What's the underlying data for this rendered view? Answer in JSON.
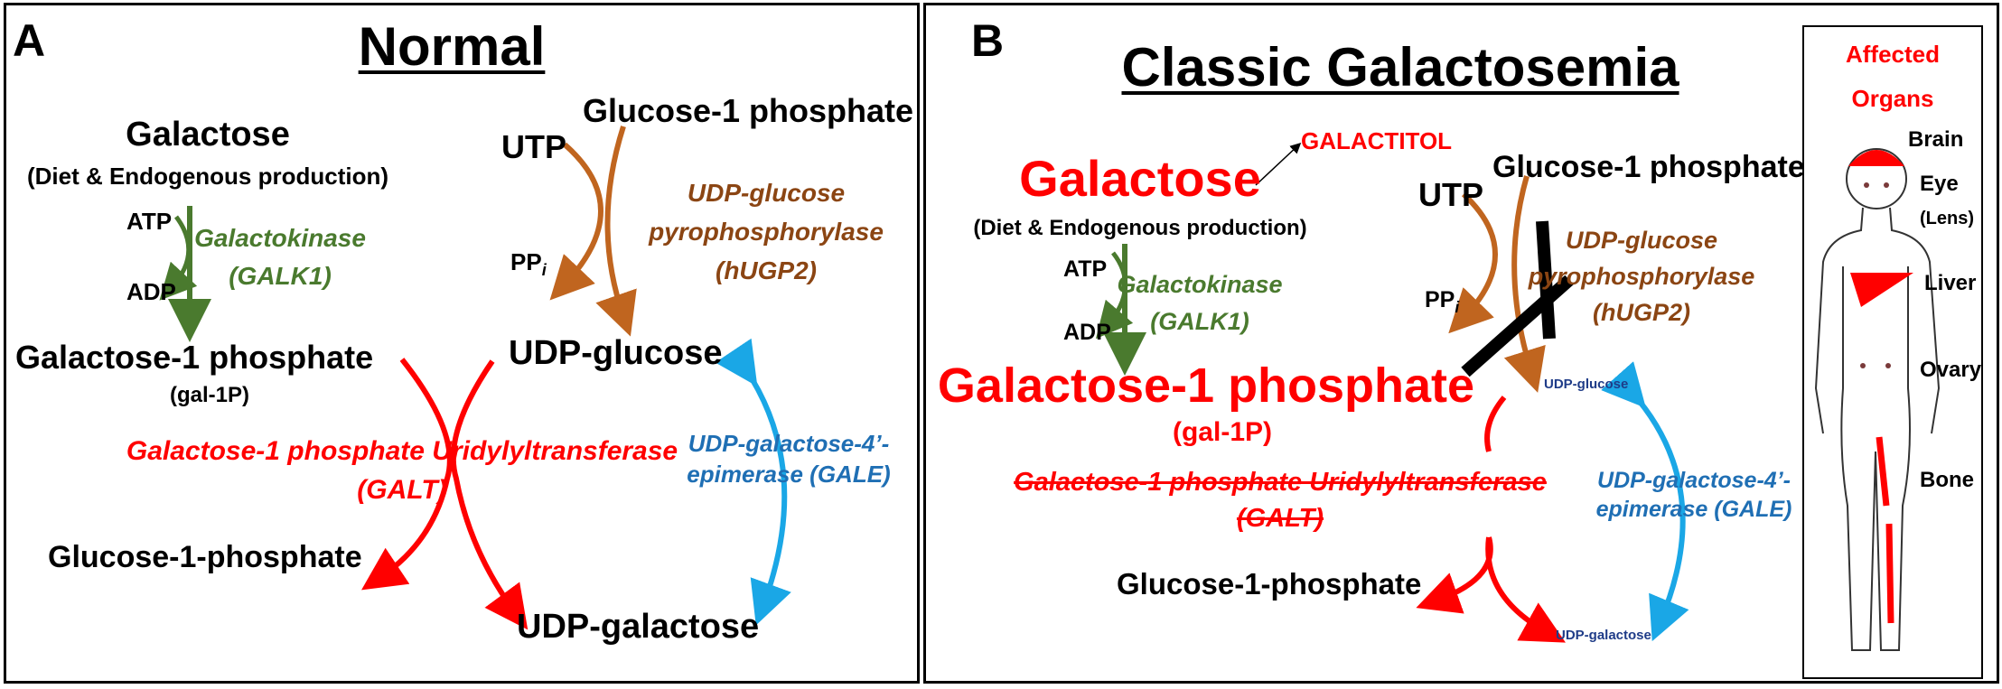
{
  "panel_a": {
    "letter": "A",
    "title": "Normal",
    "galactose": "Galactose",
    "galactose_source": "(Diet & Endogenous production)",
    "atp": "ATP",
    "adp": "ADP",
    "galk_name": "Galactokinase",
    "galk_abbr": "(GALK1)",
    "gal1p": "Galactose-1 phosphate",
    "gal1p_abbr": "(gal-1P)",
    "utp": "UTP",
    "glc1p_top": "Glucose-1 phosphate",
    "ppi": "PP",
    "ppi_sub": "i",
    "ugp_line1": "UDP-glucose",
    "ugp_line2": "pyrophosphorylase",
    "ugp_line3": "(hUGP2)",
    "udp_glucose": "UDP-glucose",
    "galt_name": "Galactose-1 phosphate Uridylyltransferase",
    "galt_abbr": "(GALT)",
    "gale_line1": "UDP-galactose-4’-",
    "gale_line2": "epimerase (GALE)",
    "glc1p_bottom": "Glucose-1-phosphate",
    "udp_galactose": "UDP-galactose"
  },
  "panel_b": {
    "letter": "B",
    "title": "Classic  Galactosemia",
    "galactitol": "GALACTITOL",
    "galactose": "Galactose",
    "galactose_source": "(Diet & Endogenous production)",
    "atp": "ATP",
    "adp": "ADP",
    "galk_name": "Galactokinase",
    "galk_abbr": "(GALK1)",
    "utp": "UTP",
    "glc1p_top": "Glucose-1 phosphate",
    "ppi": "PP",
    "ppi_sub": "i",
    "ugp_line1": "UDP-glucose",
    "ugp_line2": "pyrophosphorylase",
    "ugp_line3": "(hUGP2)",
    "gal1p": "Galactose-1 phosphate",
    "gal1p_abbr": "(gal-1P)",
    "udp_glucose": "UDP-glucose",
    "galt_name": "Galactose-1 phosphate Uridylyltransferase",
    "galt_abbr": "(GALT)",
    "gale_line1": "UDP-galactose-4’-",
    "gale_line2": "epimerase (GALE)",
    "glc1p_bottom": "Glucose-1-phosphate",
    "udp_galactose": "UDP-galactose"
  },
  "organs": {
    "title_line1": "Affected",
    "title_line2": "Organs",
    "brain": "Brain",
    "eye": "Eye",
    "lens": "(Lens)",
    "liver": "Liver",
    "ovary": "Ovary",
    "bone": "Bone"
  },
  "colors": {
    "green": "#4a7a2e",
    "orange": "#c0651f",
    "brown": "#8b4513",
    "red": "#ff0000",
    "blue": "#1aa7e6",
    "navy": "#1f3c88"
  }
}
